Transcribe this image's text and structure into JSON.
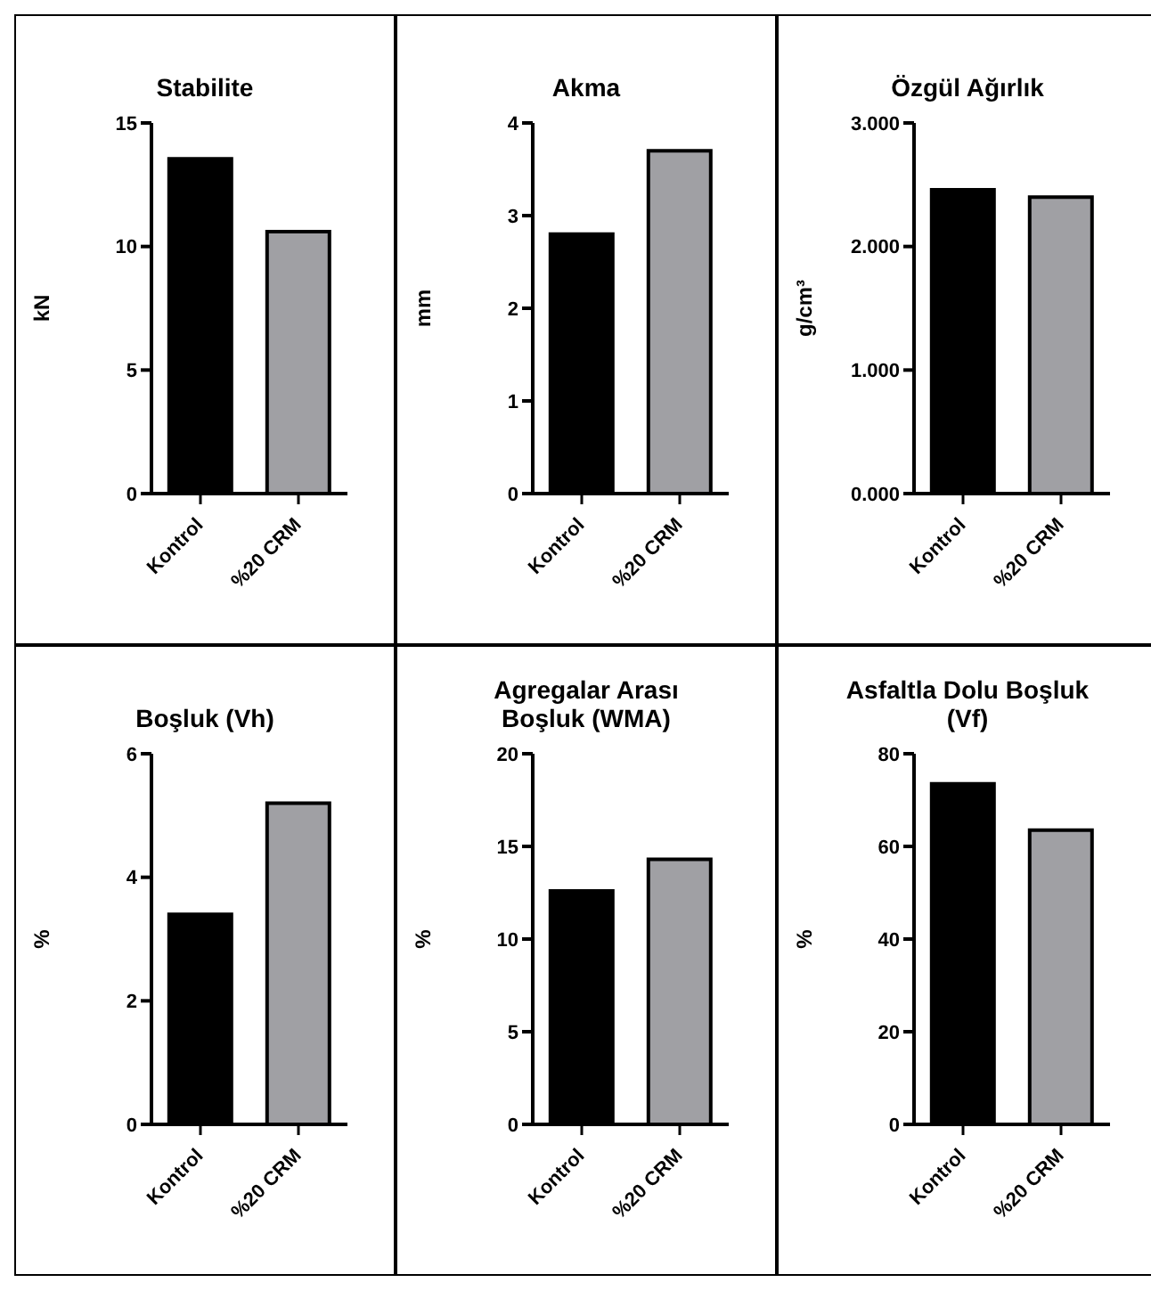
{
  "chart_data": [
    {
      "type": "bar",
      "title": "Stabilite",
      "ylabel": "kN",
      "categories": [
        "Kontrol",
        "%20 CRM"
      ],
      "values": [
        13.55,
        10.6
      ],
      "colors": [
        "#000000",
        "#a0a0a4"
      ],
      "ylim": [
        0,
        15
      ],
      "yticks": [
        0,
        5,
        10,
        15
      ]
    },
    {
      "type": "bar",
      "title": "Akma",
      "ylabel": "mm",
      "categories": [
        "Kontrol",
        "%20 CRM"
      ],
      "values": [
        2.8,
        3.7
      ],
      "colors": [
        "#000000",
        "#a0a0a4"
      ],
      "ylim": [
        0,
        4
      ],
      "yticks": [
        0,
        1,
        2,
        3,
        4
      ]
    },
    {
      "type": "bar",
      "title": "Özgül Ağırlık",
      "ylabel": "g/cm³",
      "categories": [
        "Kontrol",
        "%20 CRM"
      ],
      "values": [
        2.46,
        2.4
      ],
      "colors": [
        "#000000",
        "#a0a0a4"
      ],
      "ylim": [
        0,
        3
      ],
      "yticks": [
        {
          "value": 0,
          "label": "0.000"
        },
        {
          "value": 1,
          "label": "1.000"
        },
        {
          "value": 2,
          "label": "2.000"
        },
        {
          "value": 3,
          "label": "3.000"
        }
      ]
    },
    {
      "type": "bar",
      "title": "Boşluk (Vh)",
      "ylabel": "%",
      "categories": [
        "Kontrol",
        "%20 CRM"
      ],
      "values": [
        3.4,
        5.2
      ],
      "colors": [
        "#000000",
        "#a0a0a4"
      ],
      "ylim": [
        0,
        6
      ],
      "yticks": [
        0,
        2,
        4,
        6
      ]
    },
    {
      "type": "bar",
      "title": "Agregalar Arası Boşluk (WMA)",
      "ylabel": "%",
      "categories": [
        "Kontrol",
        "%20 CRM"
      ],
      "values": [
        12.6,
        14.3
      ],
      "colors": [
        "#000000",
        "#a0a0a4"
      ],
      "ylim": [
        0,
        20
      ],
      "yticks": [
        0,
        5,
        10,
        15,
        20
      ]
    },
    {
      "type": "bar",
      "title": "Asfaltla Dolu Boşluk (Vf)",
      "ylabel": "%",
      "categories": [
        "Kontrol",
        "%20 CRM"
      ],
      "values": [
        73.5,
        63.5
      ],
      "colors": [
        "#000000",
        "#a0a0a4"
      ],
      "ylim": [
        0,
        80
      ],
      "yticks": [
        0,
        20,
        40,
        60,
        80
      ]
    }
  ]
}
